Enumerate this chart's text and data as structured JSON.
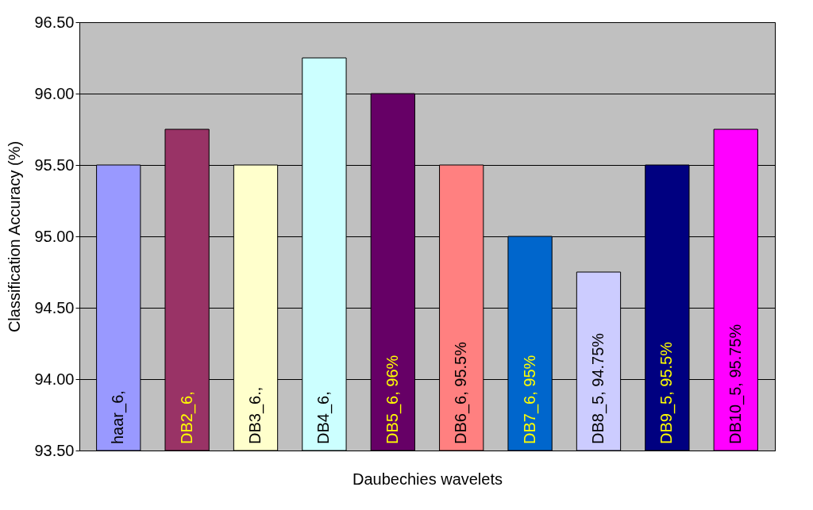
{
  "chart_data": {
    "type": "bar",
    "xlabel": "Daubechies wavelets",
    "ylabel": "Classification Accuracy (%)",
    "categories": [
      null,
      null,
      null,
      null,
      null,
      null,
      null,
      null,
      null,
      null
    ],
    "values": [
      95.5,
      95.75,
      95.5,
      96.25,
      96,
      95.5,
      95,
      94.75,
      95.5,
      95.75
    ],
    "colors": [
      "#9999ff",
      "#993366",
      "#ffffcc",
      "#ccffff",
      "#660066",
      "#ff8080",
      "#0066cc",
      "#ccccff",
      "#000080",
      "#ff00ff"
    ],
    "annotations": [
      "haar_6,",
      "DB2_6,",
      "DB3_6.,",
      "DB4_6,",
      "DB5_6, 96%",
      "DB6_6, 95.5%",
      "DB7_6, 95%",
      "DB8_5, 94.75%",
      "DB9_5, 95.5%",
      "DB10_5, 95.75%"
    ],
    "ylim": [
      93.5,
      96.5
    ],
    "yticks": [
      {
        "value": 93.5,
        "label": "93.50"
      },
      {
        "value": 94,
        "label": "94.00"
      },
      {
        "value": 94.5,
        "label": "94.50"
      },
      {
        "value": 95,
        "label": "95.00"
      },
      {
        "value": 95.5,
        "label": "95.50"
      },
      {
        "value": 96,
        "label": "96.00"
      },
      {
        "value": 96.5,
        "label": "96.50"
      }
    ],
    "grid": "y"
  }
}
